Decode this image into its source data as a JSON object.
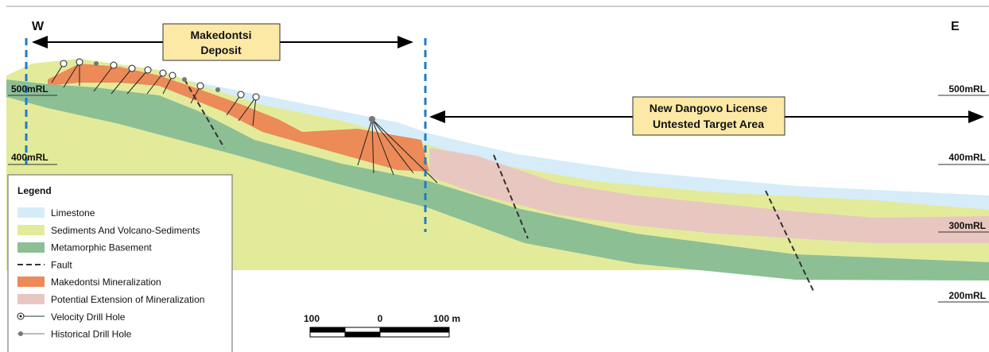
{
  "directions": {
    "west": "W",
    "east": "E"
  },
  "callouts": {
    "deposit": [
      "Makedontsi",
      "Deposit"
    ],
    "target": [
      "New Dangovo License",
      "Untested Target Area"
    ]
  },
  "elevations": {
    "left": [
      "500mRL",
      "400mRL"
    ],
    "right": [
      "500mRL",
      "400mRL",
      "300mRL",
      "200mRL"
    ]
  },
  "legend": {
    "title": "Legend",
    "items": [
      "Limestone",
      "Sediments And Volcano-Sediments",
      "Metamorphic Basement",
      "Fault",
      "Makedontsi Mineralization",
      "Potential Extension of Mineralization",
      "Velocity Drill Hole",
      "Historical Drill Hole"
    ]
  },
  "scale_bar": {
    "labels": [
      "100",
      "0",
      "100 m"
    ]
  }
}
